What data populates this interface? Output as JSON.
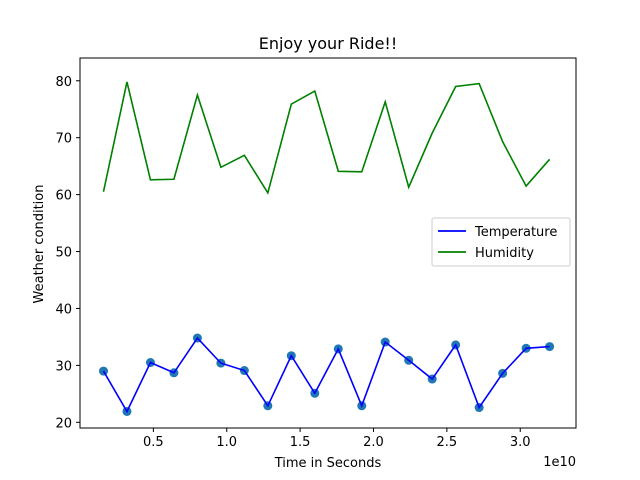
{
  "chart_data": {
    "type": "line",
    "title": "Enjoy your Ride!!",
    "xlabel": "Time in Seconds",
    "ylabel": "Weather condition",
    "x_offset_label": "1e10",
    "xlim": [
      0.0,
      3.38
    ],
    "ylim": [
      19,
      84
    ],
    "xticks": [
      0.5,
      1.0,
      1.5,
      2.0,
      2.5,
      3.0
    ],
    "xtick_labels": [
      "0.5",
      "1.0",
      "1.5",
      "2.0",
      "2.5",
      "3.0"
    ],
    "yticks": [
      20,
      30,
      40,
      50,
      60,
      70,
      80
    ],
    "ytick_labels": [
      "20",
      "30",
      "40",
      "50",
      "60",
      "70",
      "80"
    ],
    "grid": false,
    "legend_position": "center-right",
    "x": [
      0.16,
      0.32,
      0.48,
      0.64,
      0.8,
      0.96,
      1.12,
      1.28,
      1.44,
      1.6,
      1.76,
      1.92,
      2.08,
      2.24,
      2.4,
      2.56,
      2.72,
      2.88,
      3.04,
      3.2
    ],
    "series": [
      {
        "name": "Temperature",
        "color": "#0000ff",
        "marker_color": "#1f77b4",
        "markers": true,
        "values": [
          29.0,
          21.9,
          30.5,
          28.7,
          34.8,
          30.4,
          29.1,
          22.9,
          31.7,
          25.1,
          32.9,
          22.9,
          34.1,
          30.9,
          27.6,
          33.6,
          22.6,
          28.6,
          33.0,
          33.3
        ]
      },
      {
        "name": "Humidity",
        "color": "#008000",
        "markers": false,
        "values": [
          60.5,
          79.8,
          62.6,
          62.7,
          77.5,
          64.8,
          66.9,
          60.3,
          75.9,
          78.2,
          64.1,
          64.0,
          76.3,
          61.3,
          70.8,
          79.0,
          79.5,
          69.3,
          61.5,
          66.2
        ]
      }
    ]
  }
}
